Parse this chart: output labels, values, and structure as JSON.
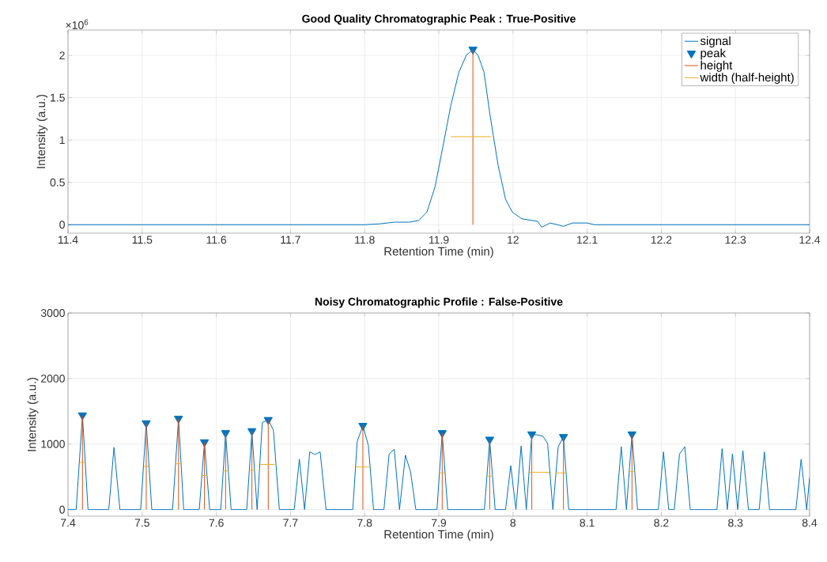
{
  "chart_data": [
    {
      "type": "line",
      "title": "Good Quality Chromatographic Peak : True-Positive",
      "xlabel": "Retention Time (min)",
      "ylabel": "Intensity (a.u.)",
      "xlim": [
        11.4,
        12.4
      ],
      "xticks": [
        11.4,
        11.5,
        11.6,
        11.7,
        11.8,
        11.9,
        12,
        12.1,
        12.2,
        12.3,
        12.4
      ],
      "ylim": [
        -0.1,
        2.3
      ],
      "yticks": [
        0,
        0.5,
        1,
        1.5,
        2
      ],
      "annotations": [
        "×10$^{6}$"
      ],
      "grid": true,
      "legend": "top right",
      "series": [
        {
          "name": "signal",
          "color": "#0072bd",
          "x": [
            11.4,
            11.5,
            11.6,
            11.7,
            11.8,
            11.82,
            11.84,
            11.86,
            11.873,
            11.884,
            11.895,
            11.905,
            11.916,
            11.927,
            11.937,
            11.946,
            11.953,
            11.961,
            11.969,
            11.98,
            11.99,
            11.999,
            12.012,
            12.033,
            12.039,
            12.05,
            12.06,
            12.068,
            12.08,
            12.1,
            12.11,
            12.2,
            12.3,
            12.4
          ],
          "values": [
            0,
            0,
            0,
            0,
            0,
            0.01,
            0.03,
            0.03,
            0.05,
            0.15,
            0.45,
            0.9,
            1.4,
            1.8,
            2,
            2.07,
            2,
            1.8,
            1.3,
            0.7,
            0.3,
            0.15,
            0.07,
            0.04,
            -0.03,
            0.02,
            0,
            -0.02,
            0.02,
            0.02,
            0,
            0,
            0,
            0
          ]
        },
        {
          "name": "peak",
          "type": "scatter",
          "marker": "triangle",
          "color": "#0072bd",
          "x": [
            11.946
          ],
          "values": [
            2.07
          ]
        },
        {
          "name": "height",
          "color": "#d95319",
          "x": [
            11.946,
            11.946
          ],
          "values": [
            0,
            2.07
          ]
        },
        {
          "name": "width (half-height)",
          "color": "#edb120",
          "x": [
            11.916,
            11.971
          ],
          "values": [
            1.04,
            1.04
          ]
        }
      ]
    },
    {
      "type": "line",
      "title": "Noisy Chromatographic Profile : False-Positive",
      "xlabel": "Retention Time (min)",
      "ylabel": "Intensity (a.u.)",
      "xlim": [
        7.4,
        8.4
      ],
      "xticks": [
        7.4,
        7.5,
        7.6,
        7.7,
        7.8,
        7.9,
        8,
        8.1,
        8.2,
        8.3,
        8.4
      ],
      "ylim": [
        -100,
        3000
      ],
      "yticks": [
        0,
        1000,
        2000,
        3000
      ],
      "grid": true,
      "series": [
        {
          "color": "#0072bd",
          "x": [
            7.4,
            7.411,
            7.4195,
            7.427,
            7.455,
            7.462,
            7.47,
            7.498,
            7.5055,
            7.513,
            7.541,
            7.549,
            7.556,
            7.577,
            7.584,
            7.591,
            7.606,
            7.6125,
            7.62,
            7.641,
            7.648,
            7.655,
            7.662,
            7.67,
            7.677,
            7.685,
            7.705,
            7.712,
            7.719,
            7.726,
            7.733,
            7.74,
            7.748,
            7.784,
            7.79,
            7.7976,
            7.805,
            7.812,
            7.826,
            7.833,
            7.84,
            7.847,
            7.855,
            7.862,
            7.869,
            7.8975,
            7.9046,
            7.912,
            7.9615,
            7.9686,
            7.976,
            7.99,
            7.997,
            8.004,
            8.011,
            8.018,
            8.0254,
            8.0325,
            8.0403,
            8.0467,
            8.0538,
            8.061,
            8.0681,
            8.0752,
            8.139,
            8.146,
            8.153,
            8.1605,
            8.168,
            8.196,
            8.203,
            8.21,
            8.2175,
            8.2246,
            8.2317,
            8.239,
            8.275,
            8.282,
            8.289,
            8.296,
            8.303,
            8.31,
            8.3175,
            8.332,
            8.339,
            8.346,
            8.3815,
            8.3886,
            8.396,
            8.4
          ],
          "values": [
            0,
            0,
            1440,
            0,
            0,
            950,
            0,
            0,
            1320,
            0,
            0,
            1390,
            0,
            0,
            1030,
            0,
            0,
            1170,
            0,
            0,
            1200,
            0,
            1330,
            1370,
            1210,
            0,
            0,
            770,
            0,
            880,
            840,
            880,
            0,
            0,
            1040,
            1280,
            980,
            0,
            0,
            850,
            920,
            0,
            830,
            570,
            0,
            0,
            1170,
            0,
            0,
            1070,
            0,
            0,
            670,
            0,
            970,
            0,
            1150,
            1140,
            1120,
            1010,
            0,
            960,
            1110,
            0,
            0,
            960,
            0,
            1150,
            0,
            0,
            880,
            0,
            0,
            850,
            960,
            0,
            0,
            930,
            0,
            850,
            0,
            900,
            0,
            0,
            880,
            0,
            0,
            770,
            0,
            490
          ]
        },
        {
          "type": "scatter",
          "marker": "triangle",
          "color": "#0072bd",
          "x": [
            7.4195,
            7.5055,
            7.549,
            7.584,
            7.6125,
            7.648,
            7.67,
            7.7976,
            7.9046,
            7.9686,
            8.0254,
            8.0681,
            8.1605
          ],
          "values": [
            1440,
            1320,
            1390,
            1030,
            1170,
            1200,
            1370,
            1280,
            1170,
            1070,
            1150,
            1110,
            1150
          ]
        },
        {
          "color": "#d95319",
          "x": [
            7.4195,
            7.4195,
            null,
            7.5055,
            7.5055,
            null,
            7.549,
            7.549,
            null,
            7.584,
            7.584,
            null,
            7.6125,
            7.6125,
            null,
            7.648,
            7.648,
            null,
            7.67,
            7.67,
            null,
            7.7976,
            7.7976,
            null,
            7.9046,
            7.9046,
            null,
            7.9686,
            7.9686,
            null,
            8.0254,
            8.0254,
            null,
            8.0681,
            8.0681,
            null,
            8.1605,
            8.1605
          ],
          "values": [
            0,
            1440,
            null,
            0,
            1320,
            null,
            0,
            1390,
            null,
            0,
            1030,
            null,
            0,
            1170,
            null,
            0,
            1200,
            null,
            0,
            1370,
            null,
            0,
            1280,
            null,
            0,
            1170,
            null,
            0,
            1070,
            null,
            0,
            1150,
            null,
            0,
            1110,
            null,
            0,
            1150
          ]
        },
        {
          "color": "#edb120",
          "x": [
            7.416,
            7.423,
            null,
            7.502,
            7.509,
            null,
            7.5455,
            7.5525,
            null,
            7.5805,
            7.5875,
            null,
            7.609,
            7.616,
            null,
            7.6445,
            7.6515,
            null,
            7.659,
            7.679,
            null,
            7.788,
            7.8065,
            null,
            7.901,
            7.908,
            null,
            7.965,
            7.972,
            null,
            8.0226,
            8.0493,
            null,
            8.0581,
            8.0706,
            null,
            8.157,
            8.164
          ],
          "values": [
            720,
            720,
            null,
            660,
            660,
            null,
            700,
            700,
            null,
            520,
            520,
            null,
            590,
            590,
            null,
            600,
            600,
            null,
            690,
            690,
            null,
            650,
            650,
            null,
            560,
            560,
            null,
            510,
            510,
            null,
            570,
            570,
            null,
            560,
            560,
            null,
            580,
            580
          ]
        }
      ]
    }
  ]
}
